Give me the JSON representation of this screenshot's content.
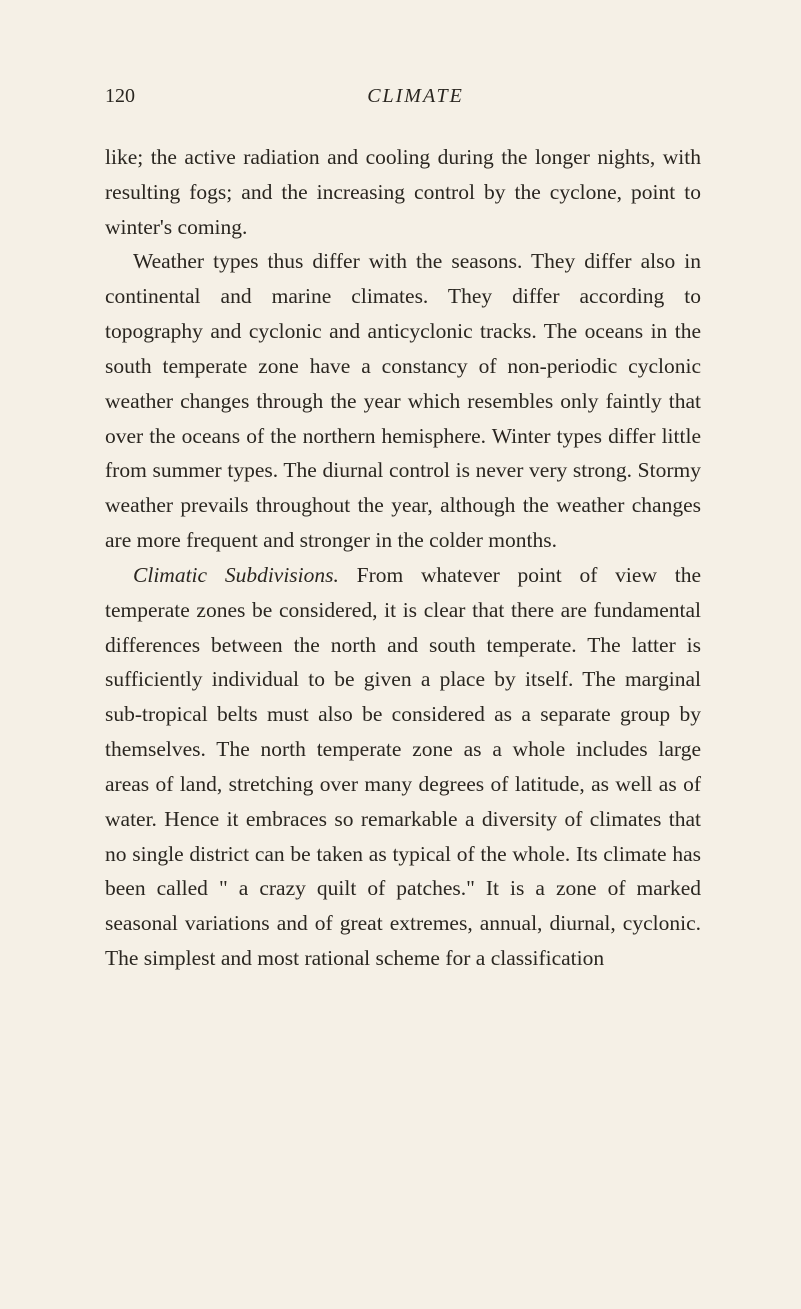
{
  "header": {
    "page_number": "120",
    "chapter_title": "CLIMATE"
  },
  "paragraphs": {
    "p1": "like; the active radiation and cooling during the longer nights, with resulting fogs; and the increas­ing control by the cyclone, point to winter's coming.",
    "p2": "Weather types thus differ with the seasons. They differ also in continental and marine climates. They differ according to topography and cyclonic and anti­cyclonic tracks. The oceans in the south temperate zone have a constancy of non-periodic cyclonic weather changes through the year which resembles only faintly that over the oceans of the northern hemi­sphere. Winter types differ little from summer types. The diurnal control is never very strong. Stormy weather prevails throughout the year, al­though the weather changes are more frequent and stronger in the colder months.",
    "p3_italic": "Climatic Subdivisions.",
    "p3_rest": " From whatever point of view the temperate zones be considered, it is clear that there are fundamental differences between the north and south temperate. The latter is sufficiently in­dividual to be given a place by itself. The marginal sub-tropical belts must also be considered as a separ­ate group by themselves. The north temperate zone as a whole includes large areas of land, stretching over many degrees of latitude, as well as of water. Hence it embraces so remarkable a diversity of climates that no single district can be taken as typical of the whole. Its climate has been called \" a crazy quilt of patches.\" It is a zone of marked seasonal variations and of great extremes, annual, diurnal, cyclonic. The simplest and most rational scheme for a classification"
  }
}
